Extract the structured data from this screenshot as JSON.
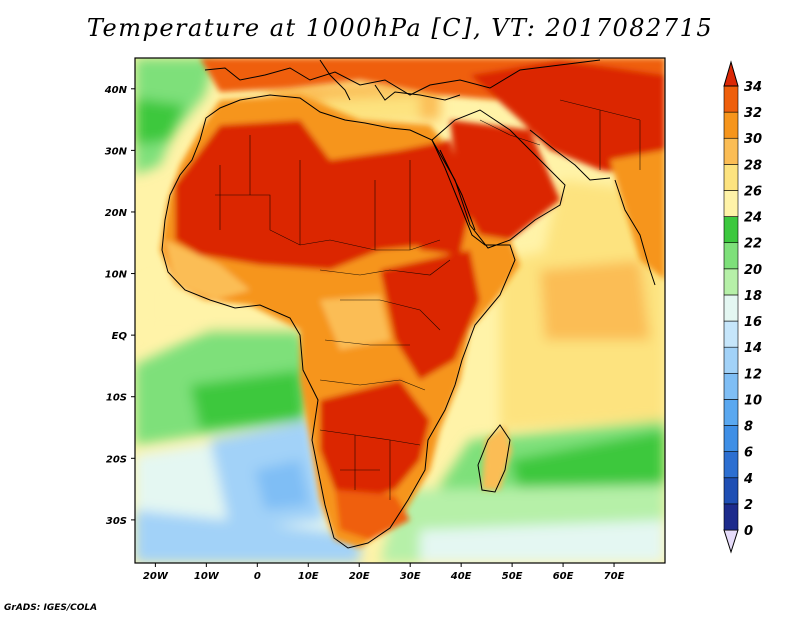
{
  "title": "Temperature at 1000hPa [C], VT: 2017082715",
  "credit": "GrADS: IGES/COLA",
  "map": {
    "projection": "lat-lon",
    "lon_range": [
      -24,
      80
    ],
    "lat_range": [
      -37,
      45
    ],
    "x_ticks": [
      {
        "lon": -20,
        "label": "20W"
      },
      {
        "lon": -10,
        "label": "10W"
      },
      {
        "lon": 0,
        "label": "0"
      },
      {
        "lon": 10,
        "label": "10E"
      },
      {
        "lon": 20,
        "label": "20E"
      },
      {
        "lon": 30,
        "label": "30E"
      },
      {
        "lon": 40,
        "label": "40E"
      },
      {
        "lon": 50,
        "label": "50E"
      },
      {
        "lon": 60,
        "label": "60E"
      },
      {
        "lon": 70,
        "label": "70E"
      }
    ],
    "y_ticks": [
      {
        "lat": 40,
        "label": "40N"
      },
      {
        "lat": 30,
        "label": "30N"
      },
      {
        "lat": 20,
        "label": "20N"
      },
      {
        "lat": 10,
        "label": "10N"
      },
      {
        "lat": 0,
        "label": "EQ"
      },
      {
        "lat": -10,
        "label": "10S"
      },
      {
        "lat": -20,
        "label": "20S"
      },
      {
        "lat": -30,
        "label": "30S"
      }
    ],
    "field": "Temperature at 1000hPa",
    "units": "C"
  },
  "colorbar": {
    "levels": [
      0,
      2,
      4,
      6,
      8,
      10,
      12,
      14,
      16,
      18,
      20,
      22,
      24,
      26,
      28,
      30,
      32,
      34
    ],
    "labels": [
      "0",
      "2",
      "4",
      "6",
      "8",
      "10",
      "12",
      "14",
      "16",
      "18",
      "20",
      "22",
      "24",
      "26",
      "28",
      "30",
      "32",
      "34"
    ],
    "colors": [
      "#1d2b8c",
      "#1f4fb4",
      "#2d6fd1",
      "#3f8fe6",
      "#5aa8f0",
      "#7fbef5",
      "#a2d2f8",
      "#c6e6fb",
      "#e4f7f2",
      "#b6f0a8",
      "#7ee07a",
      "#3cc83e",
      "#fff3a8",
      "#fde37f",
      "#fbbd55",
      "#f6951c",
      "#ef5f0c",
      "#db2806"
    ]
  }
}
